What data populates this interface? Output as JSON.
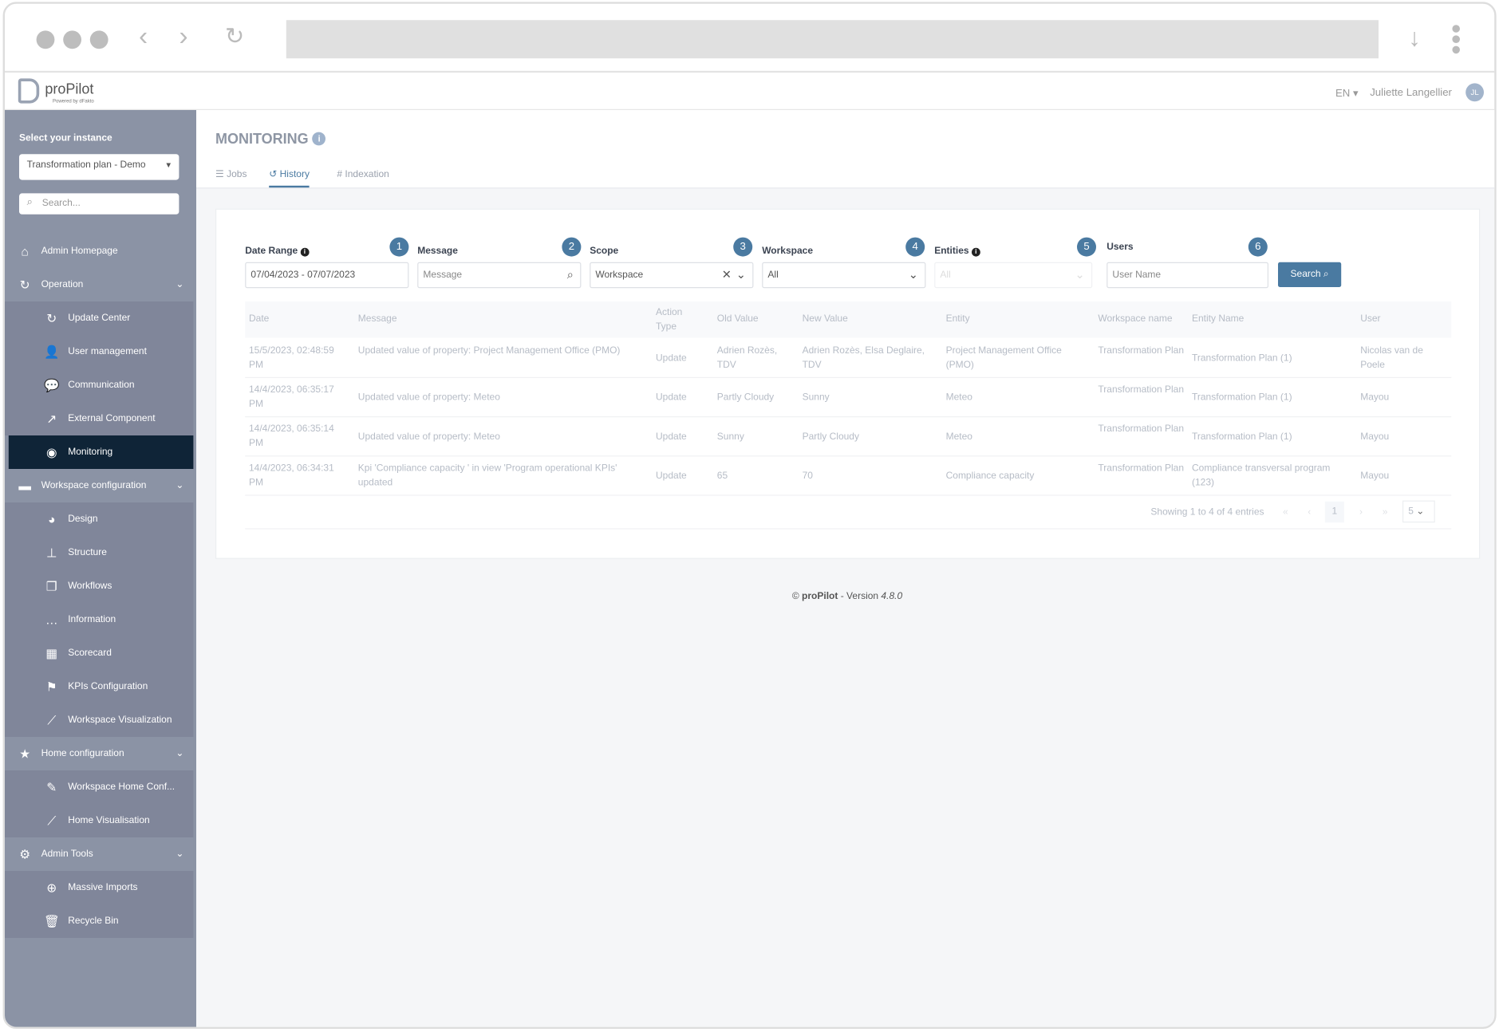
{
  "app": {
    "name": "proPilot",
    "powered_by": "Powered by dFakto",
    "language": "EN",
    "user_name": "Juliette Langellier",
    "user_initials": "JL"
  },
  "colors": {
    "accent": "#4a7aa1",
    "sidebar": "#8b93a5",
    "sidebar_active": "#0f2437"
  },
  "sidebar": {
    "instance_label": "Select your instance",
    "instance_value": "Transformation plan - Demo",
    "search_placeholder": "Search...",
    "items": [
      {
        "label": "Admin Homepage",
        "icon": "home-icon",
        "type": "top"
      },
      {
        "label": "Operation",
        "icon": "refresh-icon",
        "type": "section"
      },
      {
        "label": "Update Center",
        "icon": "refresh-icon",
        "type": "sub"
      },
      {
        "label": "User management",
        "icon": "user-icon",
        "type": "sub"
      },
      {
        "label": "Communication",
        "icon": "comments-icon",
        "type": "sub"
      },
      {
        "label": "External Component",
        "icon": "external-link-icon",
        "type": "sub"
      },
      {
        "label": "Monitoring",
        "icon": "eye-icon",
        "type": "active"
      },
      {
        "label": "Workspace configuration",
        "icon": "folder-icon",
        "type": "section"
      },
      {
        "label": "Design",
        "icon": "palette-icon",
        "type": "sub"
      },
      {
        "label": "Structure",
        "icon": "sitemap-icon",
        "type": "sub"
      },
      {
        "label": "Workflows",
        "icon": "copy-icon",
        "type": "sub"
      },
      {
        "label": "Information",
        "icon": "comment-dots-icon",
        "type": "sub"
      },
      {
        "label": "Scorecard",
        "icon": "table-icon",
        "type": "sub"
      },
      {
        "label": "KPIs Configuration",
        "icon": "flag-icon",
        "type": "sub"
      },
      {
        "label": "Workspace Visualization",
        "icon": "chart-line-icon",
        "type": "sub"
      },
      {
        "label": "Home configuration",
        "icon": "star-icon",
        "type": "section"
      },
      {
        "label": "Workspace Home Conf...",
        "icon": "edit-icon",
        "type": "sub"
      },
      {
        "label": "Home Visualisation",
        "icon": "chart-line-icon",
        "type": "sub"
      },
      {
        "label": "Admin Tools",
        "icon": "gear-icon",
        "type": "section"
      },
      {
        "label": "Massive Imports",
        "icon": "download-circle-icon",
        "type": "sub"
      },
      {
        "label": "Recycle Bin",
        "icon": "trash-icon",
        "type": "sub"
      }
    ]
  },
  "page": {
    "title": "MONITORING",
    "tabs": [
      {
        "label": "Jobs",
        "icon": "list-icon"
      },
      {
        "label": "History",
        "icon": "history-icon",
        "active": true
      },
      {
        "label": "Indexation",
        "icon": "hash-icon"
      }
    ]
  },
  "filters": {
    "date_range": {
      "label": "Date Range",
      "value": "07/04/2023 - 07/07/2023",
      "badge": "1"
    },
    "message": {
      "label": "Message",
      "placeholder": "Message",
      "badge": "2"
    },
    "scope": {
      "label": "Scope",
      "value": "Workspace",
      "badge": "3"
    },
    "workspace": {
      "label": "Workspace",
      "value": "All",
      "badge": "4"
    },
    "entities": {
      "label": "Entities",
      "value": "All",
      "badge": "5"
    },
    "users": {
      "label": "Users",
      "placeholder": "User Name",
      "badge": "6"
    },
    "search_button": "Search"
  },
  "table": {
    "columns": [
      "Date",
      "Message",
      "Action Type",
      "Old Value",
      "New Value",
      "Entity",
      "Workspace name",
      "Entity Name",
      "User"
    ],
    "rows": [
      [
        "15/5/2023, 02:48:59 PM",
        "Updated value of property: Project Management Office (PMO)",
        "Update",
        "Adrien Rozès, TDV",
        "Adrien Rozès, Elsa Deglaire, TDV",
        "Project Management Office (PMO)",
        "Transformation Plan",
        "Transformation Plan (1)",
        "Nicolas van de Poele"
      ],
      [
        "14/4/2023, 06:35:17 PM",
        "Updated value of property: Meteo",
        "Update",
        "Partly Cloudy",
        "Sunny",
        "Meteo",
        "Transformation Plan",
        "Transformation Plan (1)",
        "Mayou"
      ],
      [
        "14/4/2023, 06:35:14 PM",
        "Updated value of property: Meteo",
        "Update",
        "Sunny",
        "Partly Cloudy",
        "Meteo",
        "Transformation Plan",
        "Transformation Plan (1)",
        "Mayou"
      ],
      [
        "14/4/2023, 06:34:31 PM",
        "Kpi 'Compliance capacity ' in view 'Program operational KPIs' updated",
        "Update",
        "65",
        "70",
        "Compliance capacity",
        "Transformation Plan",
        "Compliance transversal program (123)",
        "Mayou"
      ]
    ],
    "pagination": {
      "summary": "Showing 1 to 4 of 4 entries",
      "first": "«",
      "prev": "‹",
      "current": "1",
      "next": "›",
      "last": "»",
      "page_size": "5"
    }
  },
  "footer": {
    "copyright": "© ",
    "brand": "proPilot",
    "version_prefix": " - Version ",
    "version": "4.8.0"
  }
}
